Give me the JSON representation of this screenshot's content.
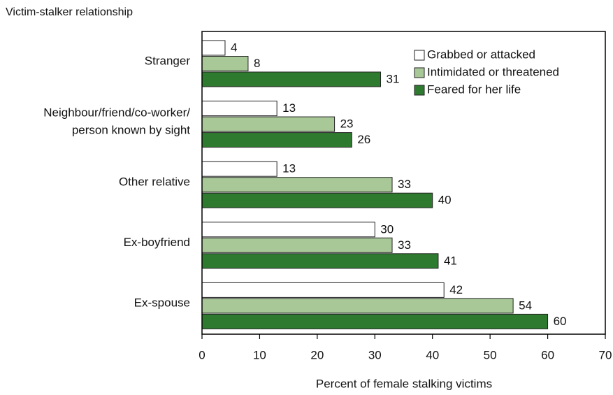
{
  "chart_data": {
    "type": "bar",
    "orientation": "horizontal",
    "title": "Victim-stalker relationship",
    "x_label": "Percent of female stalking victims",
    "categories": [
      "Stranger",
      "Neighbour/friend/co-worker/\nperson known by sight",
      "Other relative",
      "Ex-boyfriend",
      "Ex-spouse"
    ],
    "series": [
      {
        "name": "Grabbed or attacked",
        "color": "#ffffff",
        "values": [
          4,
          13,
          13,
          30,
          42
        ]
      },
      {
        "name": "Intimidated or threatened",
        "color": "#a8c898",
        "values": [
          8,
          23,
          33,
          33,
          54
        ]
      },
      {
        "name": "Feared for her life",
        "color": "#2e7b30",
        "values": [
          31,
          26,
          40,
          41,
          60
        ]
      }
    ],
    "xlim": [
      0,
      70
    ],
    "xticks": [
      0,
      10,
      20,
      30,
      40,
      50,
      60,
      70
    ],
    "legend": "upper right"
  }
}
